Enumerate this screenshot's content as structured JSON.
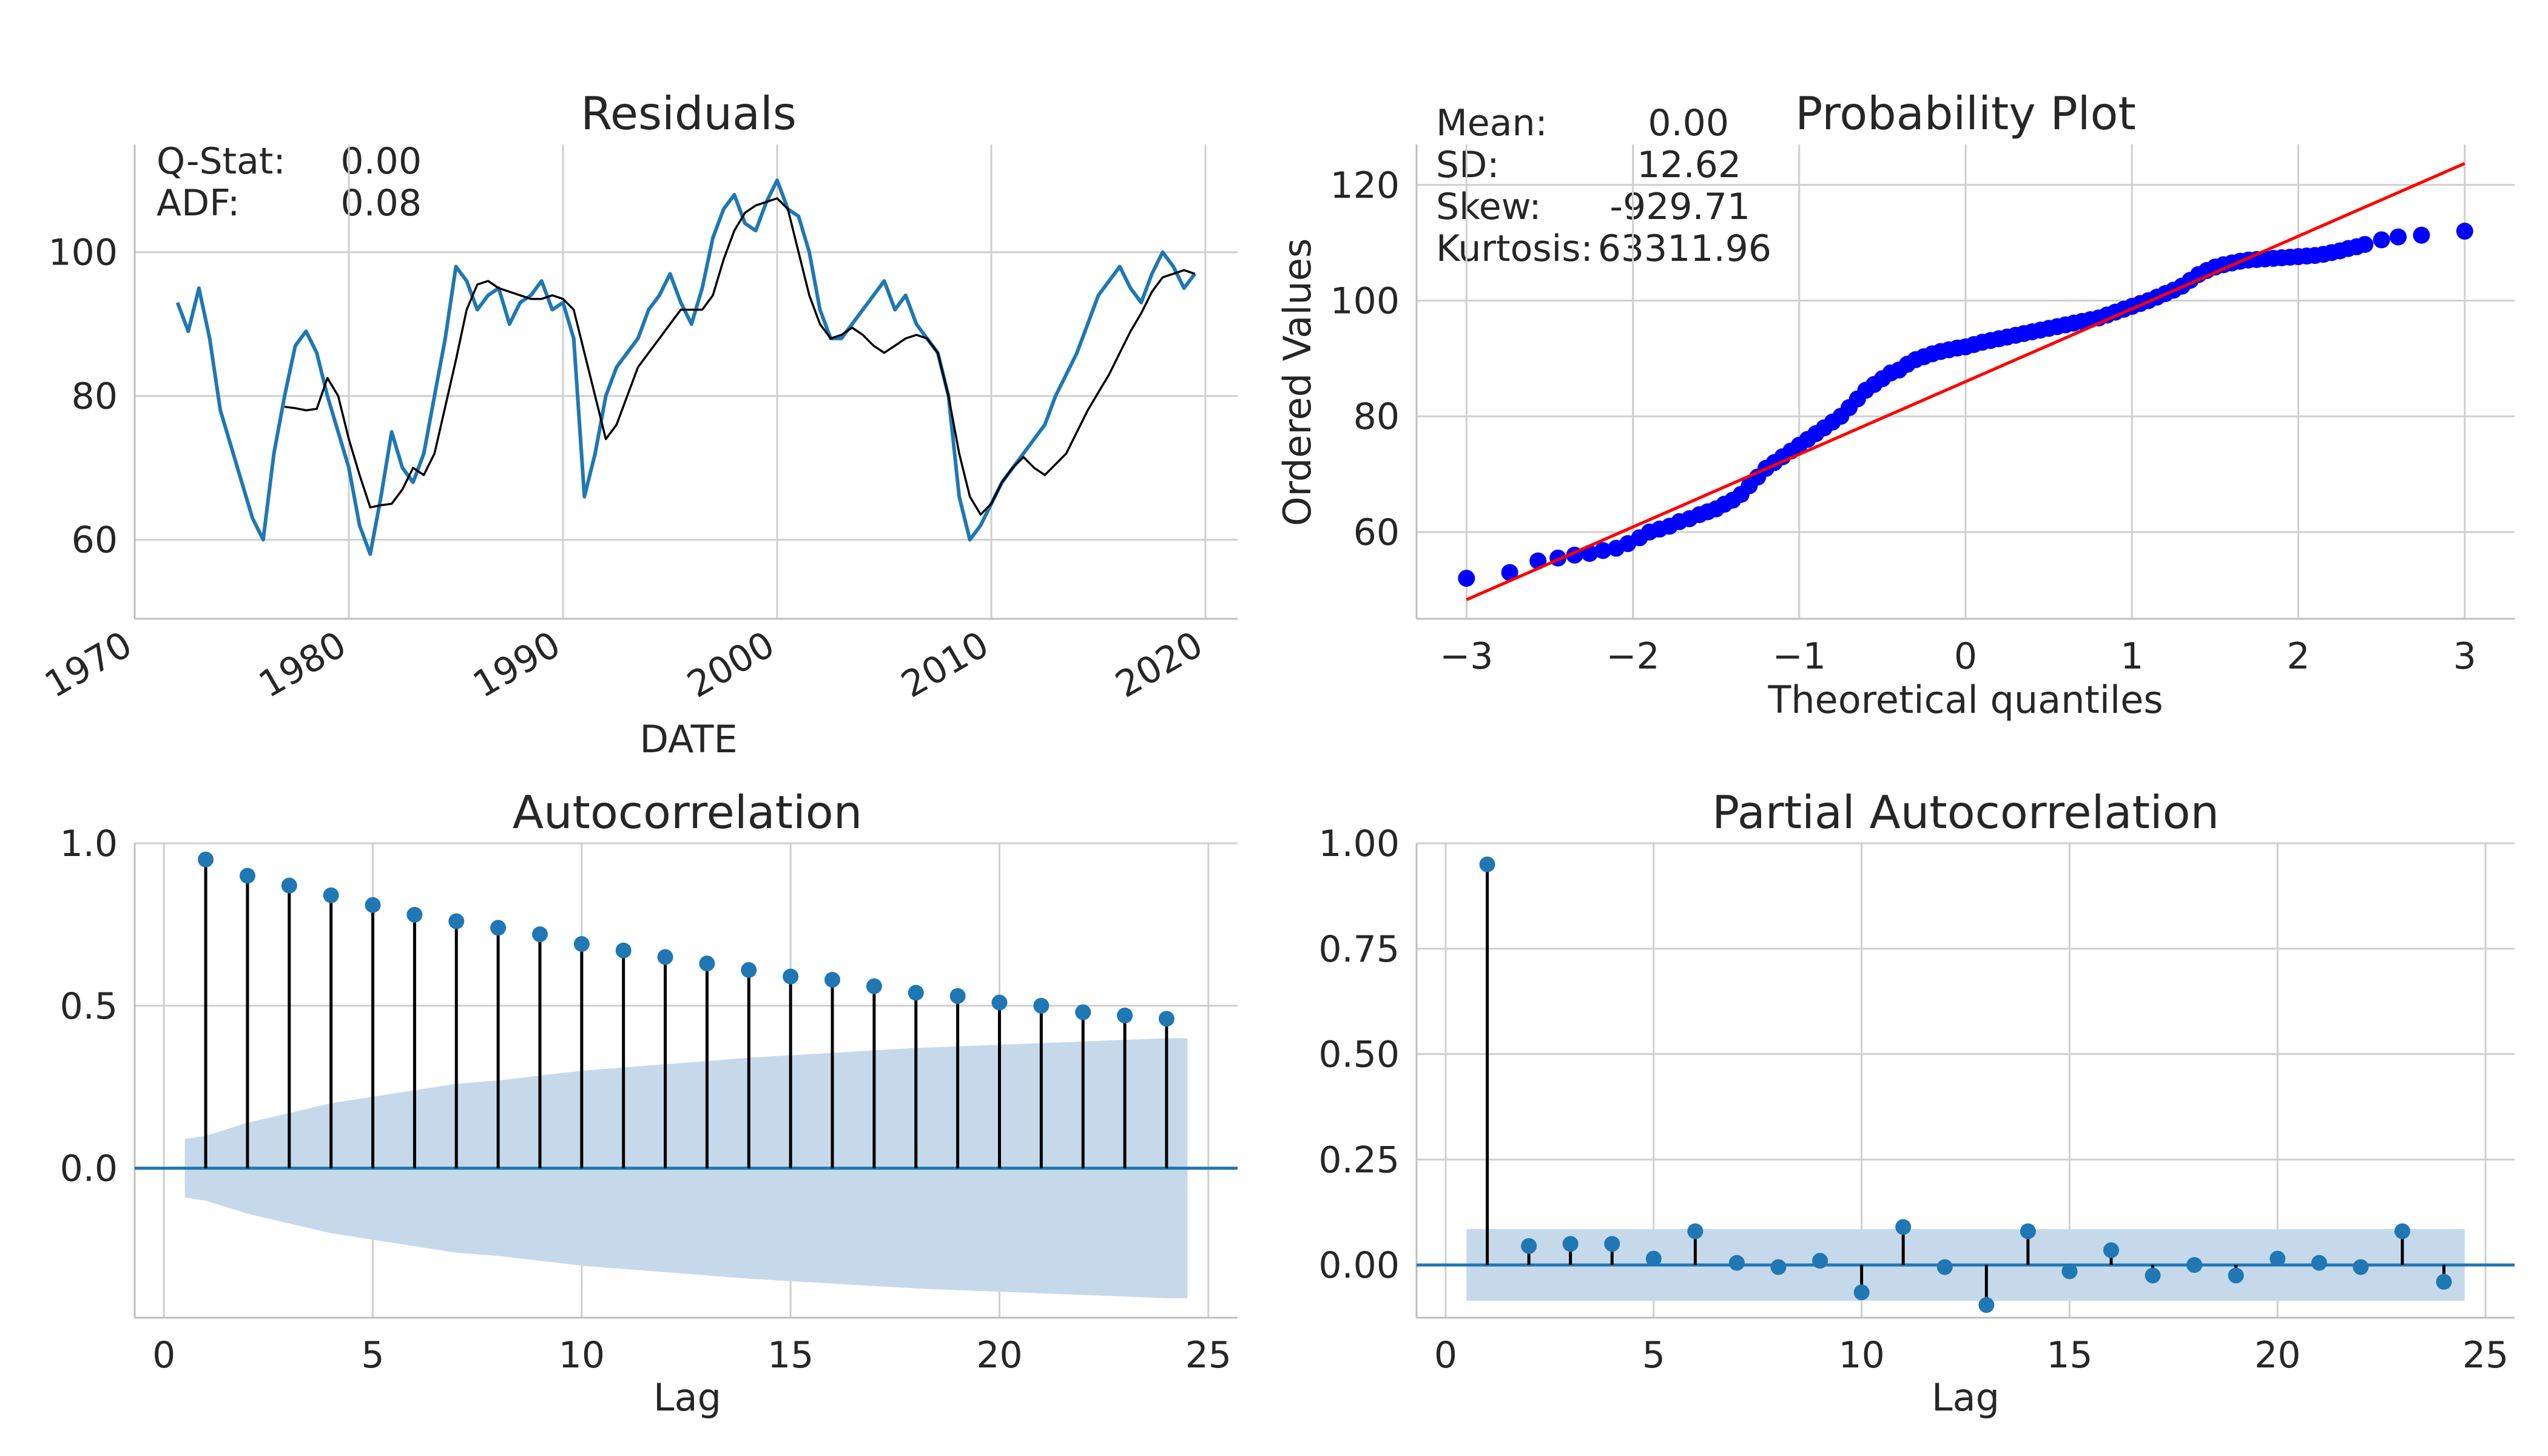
{
  "figure": {
    "background": "#ffffff",
    "colors": {
      "series": "#1f77b4",
      "rolling": "#000000",
      "qq_points": "#0000ff",
      "qq_line": "#ff0000",
      "conf_band": "#c6d9ea",
      "grid": "#cfcfcf"
    }
  },
  "chart_data": [
    {
      "id": "residuals",
      "type": "line",
      "title": "Residuals",
      "xlabel": "DATE",
      "ylabel": "",
      "xlim": [
        1970.0,
        2021.5
      ],
      "ylim": [
        49,
        115
      ],
      "xticks": [
        1970,
        1980,
        1990,
        2000,
        2010,
        2020
      ],
      "xtick_labels": [
        "1970",
        "1980",
        "1990",
        "2000",
        "2010",
        "2020"
      ],
      "yticks": [
        60,
        80,
        100
      ],
      "ytick_labels": [
        "60",
        "80",
        "100"
      ],
      "grid": true,
      "annotations": [
        {
          "label": "Q-Stat:",
          "value": "0.00"
        },
        {
          "label": "ADF:",
          "value": "0.08"
        }
      ],
      "series": [
        {
          "role": "observed",
          "color": "#1f77b4",
          "x": [
            1972.0,
            1972.5,
            1973.0,
            1973.5,
            1974.0,
            1974.5,
            1975.0,
            1975.5,
            1976.0,
            1976.5,
            1977.0,
            1977.5,
            1978.0,
            1978.5,
            1979.0,
            1979.5,
            1980.0,
            1980.5,
            1981.0,
            1981.5,
            1982.0,
            1982.5,
            1983.0,
            1983.5,
            1984.0,
            1984.5,
            1985.0,
            1985.5,
            1986.0,
            1986.5,
            1987.0,
            1987.5,
            1988.0,
            1988.5,
            1989.0,
            1989.5,
            1990.0,
            1990.5,
            1991.0,
            1991.5,
            1992.0,
            1992.5,
            1993.0,
            1993.5,
            1994.0,
            1994.5,
            1995.0,
            1995.5,
            1996.0,
            1996.5,
            1997.0,
            1997.5,
            1998.0,
            1998.5,
            1999.0,
            1999.5,
            2000.0,
            2000.5,
            2001.0,
            2001.5,
            2002.0,
            2002.5,
            2003.0,
            2003.5,
            2004.0,
            2004.5,
            2005.0,
            2005.5,
            2006.0,
            2006.5,
            2007.0,
            2007.5,
            2008.0,
            2008.5,
            2009.0,
            2009.5,
            2010.0,
            2010.5,
            2011.0,
            2011.5,
            2012.0,
            2012.5,
            2013.0,
            2013.5,
            2014.0,
            2014.5,
            2015.0,
            2015.5,
            2016.0,
            2016.5,
            2017.0,
            2017.5,
            2018.0,
            2018.5,
            2019.0,
            2019.5
          ],
          "y": [
            93,
            89,
            95,
            88,
            78,
            73,
            68,
            63,
            60,
            72,
            80,
            87,
            89,
            86,
            80,
            75,
            70,
            62,
            58,
            66,
            75,
            70,
            68,
            72,
            80,
            88,
            98,
            96,
            92,
            94,
            95,
            90,
            93,
            94,
            96,
            92,
            93,
            88,
            66,
            72,
            80,
            84,
            86,
            88,
            92,
            94,
            97,
            93,
            90,
            95,
            102,
            106,
            108,
            104,
            103,
            107,
            110,
            106,
            105,
            100,
            92,
            88,
            88,
            90,
            92,
            94,
            96,
            92,
            94,
            90,
            88,
            86,
            80,
            66,
            60,
            62,
            65,
            68,
            70,
            72,
            74,
            76,
            80,
            83,
            86,
            90,
            94,
            96,
            98,
            95,
            93,
            97,
            100,
            98,
            95,
            97
          ]
        },
        {
          "role": "rolling_mean",
          "color": "#000000",
          "x": [
            1977.0,
            1977.5,
            1978.0,
            1978.5,
            1979.0,
            1979.5,
            1980.0,
            1980.5,
            1981.0,
            1981.5,
            1982.0,
            1982.5,
            1983.0,
            1983.5,
            1984.0,
            1984.5,
            1985.0,
            1985.5,
            1986.0,
            1986.5,
            1987.0,
            1987.5,
            1988.0,
            1988.5,
            1989.0,
            1989.5,
            1990.0,
            1990.5,
            1991.0,
            1991.5,
            1992.0,
            1992.5,
            1993.0,
            1993.5,
            1994.0,
            1994.5,
            1995.0,
            1995.5,
            1996.0,
            1996.5,
            1997.0,
            1997.5,
            1998.0,
            1998.5,
            1999.0,
            1999.5,
            2000.0,
            2000.5,
            2001.0,
            2001.5,
            2002.0,
            2002.5,
            2003.0,
            2003.5,
            2004.0,
            2004.5,
            2005.0,
            2005.5,
            2006.0,
            2006.5,
            2007.0,
            2007.5,
            2008.0,
            2008.5,
            2009.0,
            2009.5,
            2010.0,
            2010.5,
            2011.0,
            2011.5,
            2012.0,
            2012.5,
            2013.0,
            2013.5,
            2014.0,
            2014.5,
            2015.0,
            2015.5,
            2016.0,
            2016.5,
            2017.0,
            2017.5,
            2018.0,
            2018.5,
            2019.0,
            2019.5
          ],
          "y": [
            78.5,
            78.3,
            78.0,
            78.2,
            82.5,
            80.0,
            74.0,
            69.0,
            64.5,
            64.8,
            65.0,
            67.0,
            70.0,
            69.0,
            72.0,
            78.5,
            85.0,
            92.0,
            95.5,
            96.0,
            95.0,
            94.5,
            94.0,
            93.5,
            93.5,
            94.0,
            93.5,
            92.0,
            86.0,
            80.0,
            74.0,
            76.0,
            80.0,
            84.0,
            86.0,
            88.0,
            90.0,
            92.0,
            92.0,
            92.0,
            94.0,
            99.0,
            103.0,
            105.5,
            106.5,
            107.0,
            107.5,
            106.0,
            100.0,
            94.0,
            90.0,
            88.0,
            88.5,
            89.5,
            88.5,
            87.0,
            86.0,
            87.0,
            88.0,
            88.5,
            88.0,
            86.0,
            80.0,
            72.0,
            66.0,
            63.5,
            65.0,
            68.0,
            70.0,
            71.5,
            70.0,
            69.0,
            70.5,
            72.0,
            75.0,
            78.0,
            80.5,
            83.0,
            86.0,
            89.0,
            91.5,
            94.5,
            96.5,
            97.0,
            97.5,
            97.0
          ]
        }
      ]
    },
    {
      "id": "probability_plot",
      "type": "scatter",
      "title": "Probability Plot",
      "xlabel": "Theoretical quantiles",
      "ylabel": "Ordered Values",
      "xlim": [
        -3.3,
        3.3
      ],
      "ylim": [
        45,
        127
      ],
      "xticks": [
        -3,
        -2,
        -1,
        0,
        1,
        2,
        3
      ],
      "xtick_labels": [
        "−3",
        "−2",
        "−1",
        "0",
        "1",
        "2",
        "3"
      ],
      "yticks": [
        60,
        80,
        100,
        120
      ],
      "ytick_labels": [
        "60",
        "80",
        "100",
        "120"
      ],
      "grid": true,
      "annotations": [
        {
          "label": "Mean:",
          "value": "0.00"
        },
        {
          "label": "SD:",
          "value": "12.62"
        },
        {
          "label": "Skew:",
          "value": "-929.71"
        },
        {
          "label": "Kurtosis:",
          "value": "63311.96"
        }
      ],
      "fit_line": {
        "x": [
          -3.0,
          3.0
        ],
        "y": [
          48.3,
          123.7
        ]
      },
      "points": {
        "x": [
          -3.0,
          -2.74,
          -2.57,
          -2.45,
          -2.35,
          -2.26,
          -2.18,
          -2.1,
          -2.03,
          -1.96,
          -1.9,
          -1.84,
          -1.78,
          -1.72,
          -1.66,
          -1.6,
          -1.55,
          -1.5,
          -1.45,
          -1.4,
          -1.35,
          -1.3,
          -1.25,
          -1.2,
          -1.15,
          -1.1,
          -1.05,
          -1.0,
          -0.95,
          -0.9,
          -0.85,
          -0.8,
          -0.75,
          -0.7,
          -0.65,
          -0.6,
          -0.55,
          -0.5,
          -0.45,
          -0.4,
          -0.35,
          -0.3,
          -0.25,
          -0.2,
          -0.15,
          -0.1,
          -0.05,
          0.0,
          0.05,
          0.1,
          0.15,
          0.2,
          0.25,
          0.3,
          0.35,
          0.4,
          0.45,
          0.5,
          0.55,
          0.6,
          0.65,
          0.7,
          0.75,
          0.8,
          0.85,
          0.9,
          0.95,
          1.0,
          1.05,
          1.1,
          1.15,
          1.2,
          1.25,
          1.3,
          1.35,
          1.4,
          1.45,
          1.5,
          1.55,
          1.6,
          1.65,
          1.7,
          1.75,
          1.8,
          1.85,
          1.9,
          1.95,
          2.0,
          2.05,
          2.1,
          2.15,
          2.2,
          2.25,
          2.3,
          2.35,
          2.4,
          2.5,
          2.6,
          2.74,
          3.0
        ],
        "y": [
          52,
          53,
          55,
          55.5,
          56,
          56.3,
          56.8,
          57.2,
          58,
          59,
          60,
          60.5,
          61,
          61.8,
          62.3,
          63,
          63.5,
          64,
          64.8,
          65.5,
          66.5,
          68,
          69.5,
          71,
          72,
          73,
          74,
          75,
          76,
          77,
          78,
          79,
          80,
          81.5,
          83,
          84.5,
          85.5,
          86.5,
          87.5,
          88,
          89,
          89.8,
          90.3,
          90.8,
          91.2,
          91.5,
          91.8,
          92,
          92.4,
          92.8,
          93.1,
          93.4,
          93.7,
          94,
          94.3,
          94.6,
          94.9,
          95.2,
          95.5,
          95.8,
          96.1,
          96.4,
          96.7,
          97,
          97.5,
          98,
          98.5,
          99,
          99.5,
          100,
          100.6,
          101.2,
          101.8,
          102.5,
          103.5,
          104.5,
          105.2,
          105.8,
          106.2,
          106.5,
          106.8,
          107,
          107.1,
          107.2,
          107.3,
          107.4,
          107.5,
          107.6,
          107.7,
          107.8,
          108,
          108.3,
          108.6,
          109,
          109.3,
          109.7,
          110.5,
          111,
          111.3,
          112
        ]
      }
    },
    {
      "id": "acf",
      "type": "scatter",
      "title": "Autocorrelation",
      "xlabel": "Lag",
      "ylabel": "",
      "xlim": [
        -0.7,
        25.7
      ],
      "ylim": [
        -0.46,
        1.0
      ],
      "xticks": [
        0,
        5,
        10,
        15,
        20,
        25
      ],
      "xtick_labels": [
        "0",
        "5",
        "10",
        "15",
        "20",
        "25"
      ],
      "yticks": [
        0.0,
        0.5,
        1.0
      ],
      "ytick_labels": [
        "0.0",
        "0.5",
        "1.0"
      ],
      "grid": true,
      "lags": [
        1,
        2,
        3,
        4,
        5,
        6,
        7,
        8,
        9,
        10,
        11,
        12,
        13,
        14,
        15,
        16,
        17,
        18,
        19,
        20,
        21,
        22,
        23,
        24
      ],
      "values": [
        0.95,
        0.9,
        0.87,
        0.84,
        0.81,
        0.78,
        0.76,
        0.74,
        0.72,
        0.69,
        0.67,
        0.65,
        0.63,
        0.61,
        0.59,
        0.58,
        0.56,
        0.54,
        0.53,
        0.51,
        0.5,
        0.48,
        0.47,
        0.46
      ],
      "confidence_band": {
        "x": [
          0.5,
          1,
          2,
          3,
          4,
          5,
          6,
          7,
          8,
          10,
          12,
          14,
          16,
          18,
          20,
          22,
          24,
          24.5
        ],
        "upper": [
          0.09,
          0.1,
          0.14,
          0.17,
          0.2,
          0.22,
          0.24,
          0.26,
          0.27,
          0.3,
          0.32,
          0.34,
          0.355,
          0.37,
          0.38,
          0.39,
          0.4,
          0.4
        ]
      }
    },
    {
      "id": "pacf",
      "type": "scatter",
      "title": "Partial Autocorrelation",
      "xlabel": "Lag",
      "ylabel": "",
      "xlim": [
        -0.7,
        25.7
      ],
      "ylim": [
        -0.125,
        1.0
      ],
      "xticks": [
        0,
        5,
        10,
        15,
        20,
        25
      ],
      "xtick_labels": [
        "0",
        "5",
        "10",
        "15",
        "20",
        "25"
      ],
      "yticks": [
        0.0,
        0.25,
        0.5,
        0.75,
        1.0
      ],
      "ytick_labels": [
        "0.00",
        "0.25",
        "0.50",
        "0.75",
        "1.00"
      ],
      "grid": true,
      "lags": [
        1,
        2,
        3,
        4,
        5,
        6,
        7,
        8,
        9,
        10,
        11,
        12,
        13,
        14,
        15,
        16,
        17,
        18,
        19,
        20,
        21,
        22,
        23,
        24
      ],
      "values": [
        0.95,
        0.045,
        0.05,
        0.05,
        0.015,
        0.08,
        0.005,
        -0.005,
        0.01,
        -0.065,
        0.09,
        -0.005,
        -0.095,
        0.08,
        -0.015,
        0.035,
        -0.025,
        0.0,
        -0.025,
        0.015,
        0.005,
        -0.005,
        0.08,
        -0.04
      ],
      "confidence_band": {
        "x": [
          0.5,
          24.5
        ],
        "upper": [
          0.085,
          0.085
        ]
      }
    }
  ]
}
